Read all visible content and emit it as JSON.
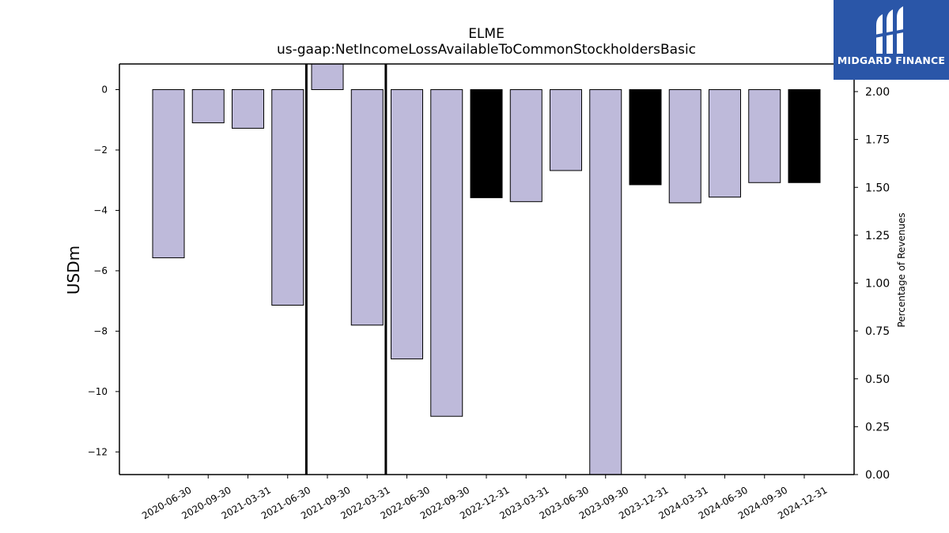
{
  "chart_data": {
    "type": "bar",
    "title": "ELME",
    "subtitle": "us-gaap:NetIncomeLossAvailableToCommonStockholdersBasic",
    "ylabel": "USDm",
    "ylabel_right": "Percentage of Revenues",
    "categories": [
      "2020-06-30",
      "2020-09-30",
      "2021-03-31",
      "2021-06-30",
      "2021-09-30",
      "2022-03-31",
      "2022-06-30",
      "2022-09-30",
      "2022-12-31",
      "2023-03-31",
      "2023-06-30",
      "2023-09-30",
      "2023-12-31",
      "2024-03-31",
      "2024-06-30",
      "2024-09-30",
      "2024-12-31"
    ],
    "values": [
      -5.57,
      -1.1,
      -1.28,
      -7.14,
      0.85,
      -7.8,
      -8.92,
      -10.82,
      -3.58,
      -3.71,
      -2.68,
      -12.75,
      -3.15,
      -3.75,
      -3.56,
      -3.08,
      -3.08
    ],
    "highlighted": [
      "2022-12-31",
      "2023-12-31",
      "2024-12-31"
    ],
    "vertical_markers": [
      "2021-06-30",
      "2022-03-31"
    ],
    "ylim": [
      -12.75,
      0.85
    ],
    "yticks": [
      0,
      -2,
      -4,
      -6,
      -8,
      -10,
      -12
    ],
    "ylim_right": [
      0,
      2.0
    ],
    "yticks_right": [
      "0.00",
      "0.25",
      "0.50",
      "0.75",
      "1.00",
      "1.25",
      "1.50",
      "1.75",
      "2.00"
    ],
    "colors": {
      "bar": "#bebada",
      "highlight": "#000000",
      "edge": "#000000"
    },
    "grid": false,
    "legend": "none"
  },
  "logo": {
    "text": "MIDGARD FINANCE",
    "icon": "midgard-logo-icon",
    "background": "#2a56a8"
  }
}
